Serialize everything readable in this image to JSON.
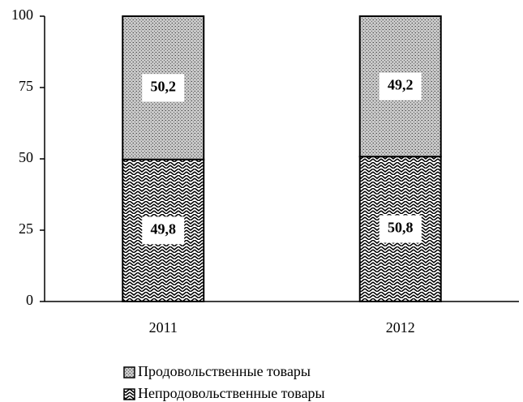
{
  "chart_data": {
    "type": "stacked_bar",
    "categories": [
      "2011",
      "2012"
    ],
    "series": [
      {
        "name": "Продовольственные товары",
        "values": [
          50.2,
          49.2
        ],
        "value_labels": [
          "50,2",
          "49,2"
        ]
      },
      {
        "name": "Непродовольственные товары",
        "values": [
          49.8,
          50.8
        ],
        "value_labels": [
          "49,8",
          "50,8"
        ]
      }
    ],
    "ylim": [
      0,
      100
    ],
    "yticks": [
      0,
      25,
      50,
      75,
      100
    ]
  }
}
